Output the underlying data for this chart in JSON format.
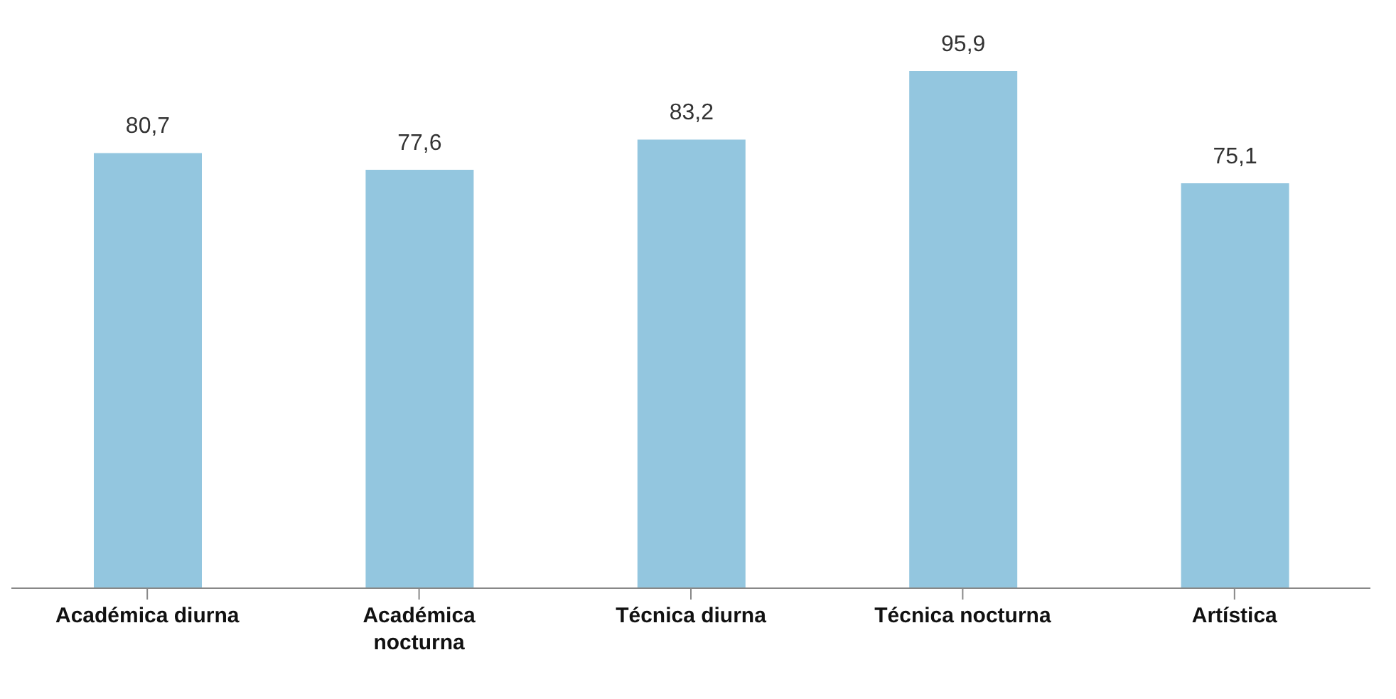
{
  "chart_data": {
    "type": "bar",
    "categories": [
      "Académica diurna",
      "Académica nocturna",
      "Técnica diurna",
      "Técnica nocturna",
      "Artística"
    ],
    "values": [
      80.7,
      77.6,
      83.2,
      95.9,
      75.1
    ],
    "value_labels": [
      "80,7",
      "77,6",
      "83,2",
      "95,9",
      "75,1"
    ],
    "color": "#93c6df",
    "grid": false,
    "legend": false
  }
}
